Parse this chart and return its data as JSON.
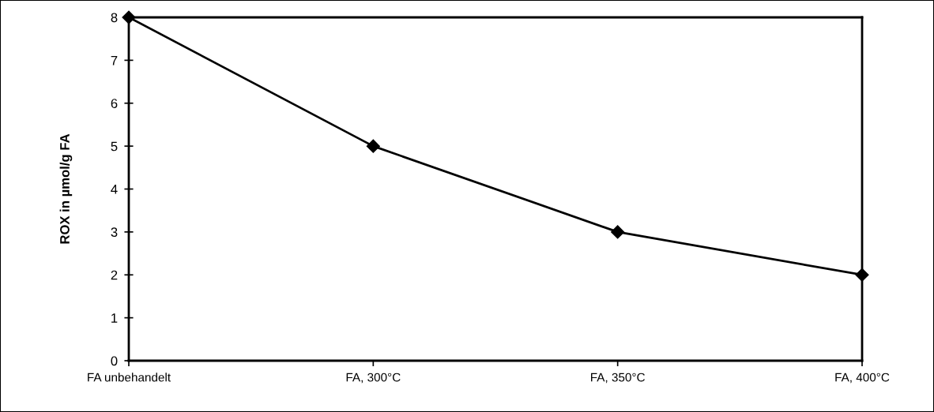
{
  "chart_data": {
    "type": "line",
    "ylabel": "ROX in µmol/g FA",
    "categories": [
      "FA unbehandelt",
      "FA, 300°C",
      "FA, 350°C",
      "FA, 400°C"
    ],
    "series": [
      {
        "color": "#000000",
        "values": [
          8,
          5,
          3,
          2.0
        ]
      }
    ],
    "ylim": [
      0,
      8
    ],
    "yticks": [
      0,
      1,
      2,
      3,
      4,
      5,
      6,
      7,
      8
    ],
    "marker": "diamond",
    "line_style": "solid",
    "grid": false,
    "legend": false
  }
}
